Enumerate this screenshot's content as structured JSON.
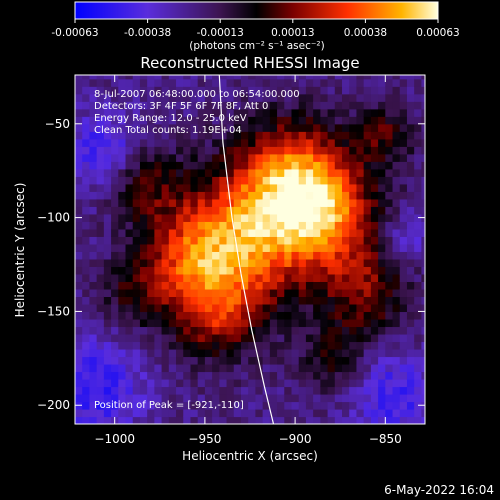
{
  "colorbar": {
    "ticks": [
      "-0.00063",
      "-0.00038",
      "-0.00013",
      "0.00013",
      "0.00038",
      "0.00063"
    ],
    "units": "(photons cm⁻² s⁻¹ asec⁻²)"
  },
  "image": {
    "title": "Reconstructed RHESSI Image",
    "info_lines": [
      "8-Jul-2007 06:48:00.000 to 06:54:00.000",
      "Detectors: 3F 4F 5F 6F 7F 8F, Att 0",
      "Energy Range: 12.0 - 25.0 keV",
      "Clean     Total counts: 1.19E+04"
    ],
    "peak_label": "Position of Peak = [-921,-110]",
    "footer_date": "6-May-2022 16:04"
  },
  "chart_data": {
    "type": "heatmap",
    "title": "Reconstructed RHESSI Image",
    "xlabel": "Heliocentric X (arcsec)",
    "ylabel": "Heliocentric Y (arcsec)",
    "xlim": [
      -1022,
      -828
    ],
    "ylim": [
      -210,
      -24
    ],
    "x_ticks": [
      -1000,
      -950,
      -900,
      -850
    ],
    "y_ticks": [
      -50,
      -100,
      -150,
      -200
    ],
    "x_tick_labels": [
      "−1000",
      "−950",
      "−900",
      "−850"
    ],
    "y_tick_labels": [
      "−50",
      "−100",
      "−150",
      "−200"
    ],
    "color_range": [
      -0.00063,
      0.00063
    ],
    "peak": [
      -921,
      -110
    ],
    "limb_curve": [
      [
        -942,
        -24
      ],
      [
        -940,
        -60
      ],
      [
        -935,
        -100
      ],
      [
        -930,
        -130
      ],
      [
        -924,
        -160
      ],
      [
        -917,
        -190
      ],
      [
        -912,
        -210
      ]
    ],
    "blobs": [
      {
        "x": -925,
        "y": -108,
        "amp": 1.0,
        "sigma": 26
      },
      {
        "x": -880,
        "y": -100,
        "amp": 0.8,
        "sigma": 20
      },
      {
        "x": -900,
        "y": -75,
        "amp": 0.75,
        "sigma": 20
      },
      {
        "x": -945,
        "y": -150,
        "amp": 0.6,
        "sigma": 18
      },
      {
        "x": -960,
        "y": -120,
        "amp": 0.55,
        "sigma": 18
      },
      {
        "x": -860,
        "y": -140,
        "amp": 0.5,
        "sigma": 16
      },
      {
        "x": -985,
        "y": -80,
        "amp": 0.45,
        "sigma": 15
      },
      {
        "x": -990,
        "y": -140,
        "amp": 0.35,
        "sigma": 13
      },
      {
        "x": -880,
        "y": -175,
        "amp": 0.35,
        "sigma": 13
      },
      {
        "x": -850,
        "y": -55,
        "amp": 0.4,
        "sigma": 12
      },
      {
        "x": -1005,
        "y": -65,
        "amp": -0.45,
        "sigma": 15
      },
      {
        "x": -1010,
        "y": -190,
        "amp": -0.45,
        "sigma": 18
      },
      {
        "x": -845,
        "y": -195,
        "amp": -0.4,
        "sigma": 16
      },
      {
        "x": -840,
        "y": -110,
        "amp": -0.3,
        "sigma": 10
      }
    ]
  }
}
